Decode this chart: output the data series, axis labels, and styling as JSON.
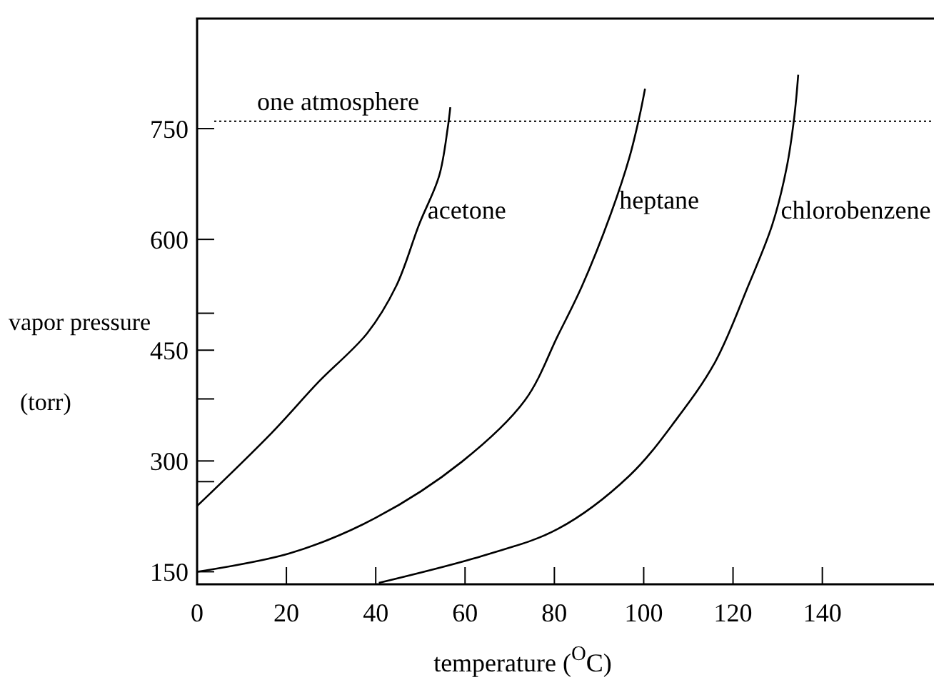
{
  "chart_data": {
    "type": "line",
    "xlabel": "temperature ($^{O}$C)",
    "ylabel": "vapor pressure",
    "y2label": "(torr)",
    "xlim": [
      0,
      165
    ],
    "ylim": [
      133,
      899
    ],
    "xticks": [
      0,
      20,
      40,
      60,
      80,
      100,
      120,
      140
    ],
    "yticks": [
      150,
      {
        "value": 272,
        "label": null
      },
      300,
      {
        "value": 384,
        "label": null
      },
      450,
      {
        "value": 500,
        "label": null
      },
      600,
      750
    ],
    "grid": false,
    "marker": "none",
    "line_style": "solid",
    "ref_lines": [
      {
        "axis": "y",
        "value": 760,
        "label": "one atmosphere",
        "line_style": "dotted"
      }
    ],
    "series": [
      {
        "name": "acetone",
        "color": "#000000",
        "x": [
          0,
          16.7,
          27.2,
          38.1,
          44.6,
          49.7,
          54.2,
          56.1,
          56.7
        ],
        "values": [
          239,
          338,
          407,
          473,
          537,
          620,
          686,
          750,
          779
        ]
      },
      {
        "name": "heptane",
        "color": "#000000",
        "x": [
          0,
          20.8,
          40,
          59.3,
          73.4,
          80.8,
          86.2,
          92.6,
          96.8,
          99,
          100.3
        ],
        "values": [
          150,
          175,
          223,
          299,
          382,
          470,
          537,
          634,
          711,
          765,
          804
        ]
      },
      {
        "name": "chlorobenzene",
        "color": "#000000",
        "x": [
          40.7,
          64.7,
          80.8,
          96.8,
          107.4,
          116,
          123.4,
          128.8,
          132,
          133.7,
          134.6
        ],
        "values": [
          135,
          173,
          208,
          280,
          357,
          434,
          537,
          620,
          697,
          765,
          823
        ]
      }
    ]
  }
}
